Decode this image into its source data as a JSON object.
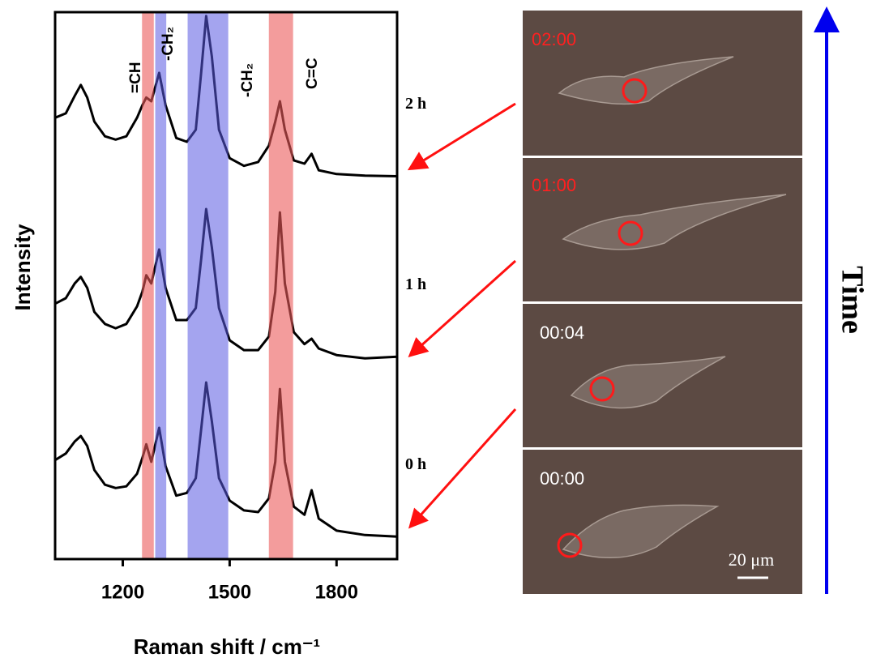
{
  "chart_data": {
    "type": "line",
    "xlabel": "Raman shift / cm⁻¹",
    "ylabel": "Intensity",
    "x": [
      1010,
      1040,
      1065,
      1082,
      1100,
      1120,
      1150,
      1180,
      1210,
      1240,
      1255,
      1266,
      1280,
      1302,
      1320,
      1350,
      1380,
      1405,
      1420,
      1434,
      1450,
      1470,
      1500,
      1540,
      1580,
      1610,
      1628,
      1641,
      1655,
      1680,
      1710,
      1730,
      1750,
      1800,
      1880,
      1970
    ],
    "xlim": [
      1010,
      1970
    ],
    "xticks": [
      1200,
      1500,
      1800
    ],
    "ylim": [
      0,
      100
    ],
    "series": [
      {
        "name": "0 h",
        "color": "#000000",
        "values": [
          18.1,
          19.3,
          21.5,
          22.5,
          20.7,
          16.3,
          13.6,
          13.0,
          13.3,
          15.6,
          18.5,
          21.0,
          17.8,
          24.0,
          17.0,
          11.6,
          12.1,
          14.8,
          23.7,
          32.3,
          25.2,
          14.8,
          10.7,
          8.9,
          8.6,
          11.1,
          17.8,
          31.1,
          17.8,
          9.6,
          8.1,
          12.6,
          7.4,
          5.2,
          4.4,
          4.1
        ]
      },
      {
        "name": "1 h",
        "color": "#000000",
        "values": [
          46.7,
          47.7,
          50.4,
          51.6,
          49.6,
          45.2,
          43.0,
          42.2,
          43.0,
          46.2,
          48.9,
          51.9,
          50.4,
          56.6,
          49.6,
          43.7,
          43.7,
          45.9,
          54.8,
          64.0,
          57.0,
          45.9,
          40.0,
          38.2,
          38.2,
          40.7,
          48.9,
          63.4,
          50.4,
          41.5,
          39.3,
          40.3,
          38.5,
          37.3,
          36.7,
          37.0
        ]
      },
      {
        "name": "2 h",
        "color": "#000000",
        "values": [
          80.7,
          81.5,
          84.7,
          86.7,
          84.4,
          80.0,
          77.3,
          76.7,
          77.3,
          80.7,
          83.0,
          84.4,
          83.7,
          88.9,
          83.0,
          77.0,
          76.3,
          78.5,
          88.9,
          99.3,
          91.9,
          78.5,
          73.3,
          71.9,
          72.6,
          75.6,
          80.0,
          83.7,
          78.5,
          72.9,
          72.3,
          74.1,
          71.1,
          70.4,
          70.1,
          70.0
        ]
      }
    ],
    "bands": [
      {
        "label": "=CH",
        "from": 1254,
        "to": 1287,
        "color": "rgba(235,90,90,0.6)"
      },
      {
        "label": "-CH₂",
        "from": 1291,
        "to": 1322,
        "color": "rgba(90,90,225,0.55)"
      },
      {
        "label": "-CH₂",
        "from": 1382,
        "to": 1496,
        "color": "rgba(90,90,225,0.55)"
      },
      {
        "label": "C=C",
        "from": 1610,
        "to": 1678,
        "color": "rgba(235,90,90,0.6)"
      }
    ]
  },
  "images": {
    "panels": [
      {
        "time": "02:00"
      },
      {
        "time": "01:00"
      },
      {
        "time": "00:04"
      },
      {
        "time": "00:00"
      }
    ],
    "scale_bar": "20 μm",
    "axis_label": "Time"
  }
}
